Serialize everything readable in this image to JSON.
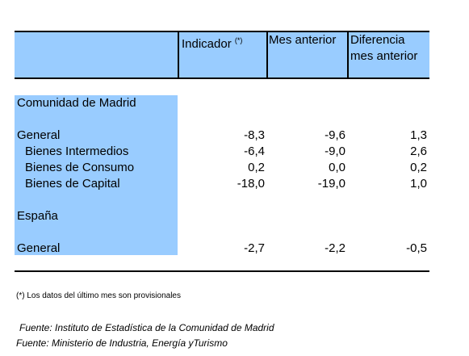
{
  "table": {
    "header": {
      "indicator": "Indicador",
      "note_mark": "(*)",
      "previous": "Mes anterior",
      "difference": "Diferencia mes anterior"
    },
    "sections": [
      {
        "title": "Comunidad de Madrid",
        "rows": [
          {
            "label": "General",
            "cells": [
              "-8,3",
              "-9,6",
              "1,3"
            ]
          },
          {
            "label": "Bienes Intermedios",
            "cells": [
              "-6,4",
              "-9,0",
              "2,6"
            ]
          },
          {
            "label": "Bienes de Consumo",
            "cells": [
              "0,2",
              "0,0",
              "0,2"
            ]
          },
          {
            "label": "Bienes de Capital",
            "cells": [
              "-18,0",
              "-19,0",
              "1,0"
            ]
          }
        ]
      },
      {
        "title": "España",
        "rows": [
          {
            "label": "General",
            "cells": [
              "-2,7",
              "-2,2",
              "-0,5"
            ]
          }
        ]
      }
    ]
  },
  "notes": {
    "footnote": "(*) Los datos del último mes son provisionales",
    "sources": [
      "Fuente: Instituto de Estadística de la Comunidad de Madrid",
      "Fuente: Ministerio de Industria, Energía yTurismo"
    ]
  }
}
